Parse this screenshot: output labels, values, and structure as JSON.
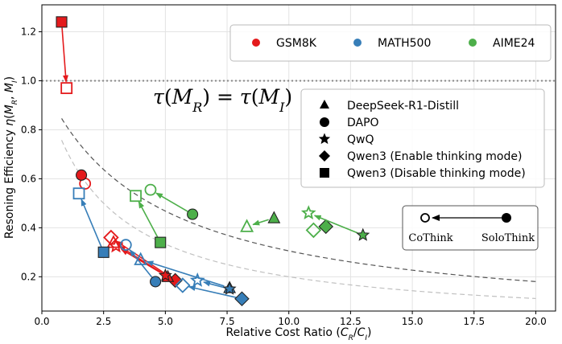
{
  "chart_data": {
    "type": "scatter",
    "xlabel": "Relative Cost Ratio ($C_R/C_I$)",
    "xlabel_parts": {
      "prefix": "Relative Cost Ratio (",
      "a": "C",
      "a_sub": "R",
      "slash": "/",
      "b": "C",
      "b_sub": "I",
      "suffix": ")"
    },
    "ylabel": "Resoning Efficiency $\\eta(M_R, M_I)$",
    "ylabel_parts": {
      "prefix": "Resoning Efficiency ",
      "eta": "η",
      "open": "(",
      "m1": "M",
      "m1_sub": "R",
      "comma": ", ",
      "m2": "M",
      "m2_sub": "I",
      "close": ")"
    },
    "xlim": [
      0,
      20.8
    ],
    "ylim": [
      0.06,
      1.31
    ],
    "xticks": [
      0.0,
      2.5,
      5.0,
      7.5,
      10.0,
      12.5,
      15.0,
      17.5,
      20.0
    ],
    "xtick_labels": [
      "0.0",
      "2.5",
      "5.0",
      "7.5",
      "10.0",
      "12.5",
      "15.0",
      "17.5",
      "20.0"
    ],
    "yticks": [
      0.2,
      0.4,
      0.6,
      0.8,
      1.0,
      1.2
    ],
    "ytick_labels": [
      "0.2",
      "0.4",
      "0.6",
      "0.8",
      "1.0",
      "1.2"
    ],
    "grid": true,
    "reference_line": {
      "y": 1.0,
      "style": "dotted",
      "color": "#888888"
    },
    "annotation": {
      "parts": {
        "tau1": "τ",
        "open1": "(",
        "m1": "M",
        "m1_sub": "R",
        "close1": ")",
        "eq": " = ",
        "tau2": "τ",
        "open2": "(",
        "m2": "M",
        "m2_sub": "I",
        "close2": ")"
      }
    },
    "curves": [
      {
        "k": 4.4,
        "color": "#555555",
        "dash": "6 4"
      },
      {
        "k": 2.5,
        "color": "#c0c0c0",
        "dash": "6 4"
      }
    ],
    "datasets": [
      {
        "name": "GSM8K",
        "color": "#e41a1c"
      },
      {
        "name": "MATH500",
        "color": "#377eb8"
      },
      {
        "name": "AIME24",
        "color": "#4daf4a"
      }
    ],
    "models": [
      {
        "name": "DeepSeek-R1-Distill",
        "marker": "triangle"
      },
      {
        "name": "DAPO",
        "marker": "circle"
      },
      {
        "name": "QwQ",
        "marker": "star"
      },
      {
        "name": "Qwen3 (Enable thinking mode)",
        "marker": "diamond"
      },
      {
        "name": "Qwen3 (Disable thinking mode)",
        "marker": "square"
      }
    ],
    "arrow_legend": {
      "left_label": "CoThink",
      "right_label": "SoloThink"
    },
    "pairs": [
      {
        "dataset": "GSM8K",
        "model": "Qwen3 (Disable thinking mode)",
        "solo": [
          0.8,
          1.24
        ],
        "co": [
          1.0,
          0.97
        ]
      },
      {
        "dataset": "GSM8K",
        "model": "DAPO",
        "solo": [
          1.6,
          0.615
        ],
        "co": [
          1.75,
          0.58
        ]
      },
      {
        "dataset": "GSM8K",
        "model": "Qwen3 (Enable thinking mode)",
        "solo": [
          5.4,
          0.185
        ],
        "co": [
          2.8,
          0.36
        ]
      },
      {
        "dataset": "GSM8K",
        "model": "DeepSeek-R1-Distill",
        "solo": [
          5.1,
          0.2
        ],
        "co": [
          2.9,
          0.34
        ]
      },
      {
        "dataset": "GSM8K",
        "model": "QwQ",
        "solo": [
          5.0,
          0.205
        ],
        "co": [
          3.0,
          0.325
        ]
      },
      {
        "dataset": "MATH500",
        "model": "Qwen3 (Disable thinking mode)",
        "solo": [
          2.5,
          0.3
        ],
        "co": [
          1.5,
          0.54
        ]
      },
      {
        "dataset": "MATH500",
        "model": "DAPO",
        "solo": [
          4.6,
          0.18
        ],
        "co": [
          3.4,
          0.33
        ]
      },
      {
        "dataset": "MATH500",
        "model": "DeepSeek-R1-Distill",
        "solo": [
          7.6,
          0.155
        ],
        "co": [
          4.0,
          0.27
        ]
      },
      {
        "dataset": "MATH500",
        "model": "QwQ",
        "solo": [
          7.6,
          0.15
        ],
        "co": [
          6.3,
          0.185
        ]
      },
      {
        "dataset": "MATH500",
        "model": "Qwen3 (Enable thinking mode)",
        "solo": [
          8.1,
          0.11
        ],
        "co": [
          5.7,
          0.165
        ]
      },
      {
        "dataset": "AIME24",
        "model": "DAPO",
        "solo": [
          6.1,
          0.455
        ],
        "co": [
          4.4,
          0.555
        ]
      },
      {
        "dataset": "AIME24",
        "model": "Qwen3 (Disable thinking mode)",
        "solo": [
          4.8,
          0.34
        ],
        "co": [
          3.8,
          0.53
        ]
      },
      {
        "dataset": "AIME24",
        "model": "DeepSeek-R1-Distill",
        "solo": [
          9.4,
          0.44
        ],
        "co": [
          8.3,
          0.405
        ]
      },
      {
        "dataset": "AIME24",
        "model": "Qwen3 (Enable thinking mode)",
        "solo": [
          11.5,
          0.405
        ],
        "co": [
          11.0,
          0.39
        ]
      },
      {
        "dataset": "AIME24",
        "model": "QwQ",
        "solo": [
          13.0,
          0.37
        ],
        "co": [
          10.8,
          0.46
        ]
      }
    ]
  }
}
